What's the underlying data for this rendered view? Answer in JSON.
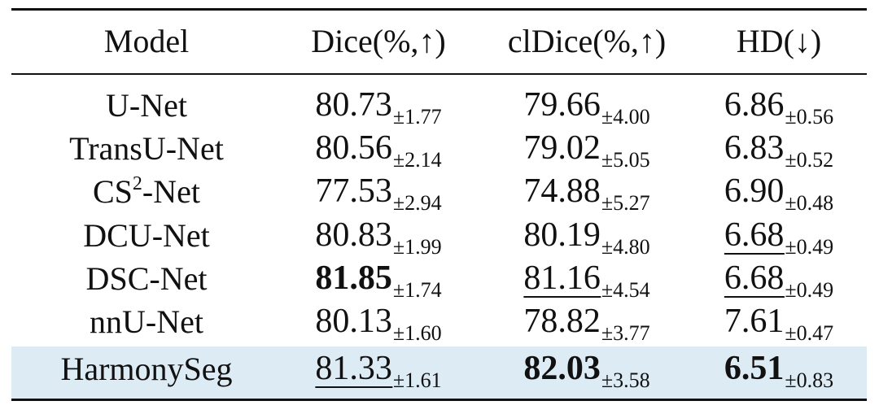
{
  "table": {
    "headers": [
      "Model",
      "Dice(%,↑)",
      "clDice(%,↑)",
      "HD(↓)"
    ],
    "rows": [
      {
        "model": "U-Net",
        "dice": {
          "value": "80.73",
          "std": "±1.77",
          "style": "normal"
        },
        "cldice": {
          "value": "79.66",
          "std": "±4.00",
          "style": "normal"
        },
        "hd": {
          "value": "6.86",
          "std": "±0.56",
          "style": "normal"
        }
      },
      {
        "model": "TransU-Net",
        "dice": {
          "value": "80.56",
          "std": "±2.14",
          "style": "normal"
        },
        "cldice": {
          "value": "79.02",
          "std": "±5.05",
          "style": "normal"
        },
        "hd": {
          "value": "6.83",
          "std": "±0.52",
          "style": "normal"
        }
      },
      {
        "model": "CS",
        "model_sup": "2",
        "model_suffix": "-Net",
        "dice": {
          "value": "77.53",
          "std": "±2.94",
          "style": "normal"
        },
        "cldice": {
          "value": "74.88",
          "std": "±5.27",
          "style": "normal"
        },
        "hd": {
          "value": "6.90",
          "std": "±0.48",
          "style": "normal"
        }
      },
      {
        "model": "DCU-Net",
        "dice": {
          "value": "80.83",
          "std": "±1.99",
          "style": "normal"
        },
        "cldice": {
          "value": "80.19",
          "std": "±4.80",
          "style": "normal"
        },
        "hd": {
          "value": "6.68",
          "std": "±0.49",
          "style": "underline"
        }
      },
      {
        "model": "DSC-Net",
        "dice": {
          "value": "81.85",
          "std": "±1.74",
          "style": "bold"
        },
        "cldice": {
          "value": "81.16",
          "std": "±4.54",
          "style": "underline"
        },
        "hd": {
          "value": "6.68",
          "std": "±0.49",
          "style": "underline"
        }
      },
      {
        "model": "nnU-Net",
        "dice": {
          "value": "80.13",
          "std": "±1.60",
          "style": "normal"
        },
        "cldice": {
          "value": "78.82",
          "std": "±3.77",
          "style": "normal"
        },
        "hd": {
          "value": "7.61",
          "std": "±0.47",
          "style": "normal"
        }
      },
      {
        "model": "HarmonySeg",
        "highlighted": true,
        "dice": {
          "value": "81.33",
          "std": "±1.61",
          "style": "underline"
        },
        "cldice": {
          "value": "82.03",
          "std": "±3.58",
          "style": "bold"
        },
        "hd": {
          "value": "6.51",
          "std": "±0.83",
          "style": "bold"
        }
      }
    ]
  },
  "colors": {
    "highlight_row": "#dcebf4",
    "rules": "#111111",
    "text": "#111111"
  }
}
